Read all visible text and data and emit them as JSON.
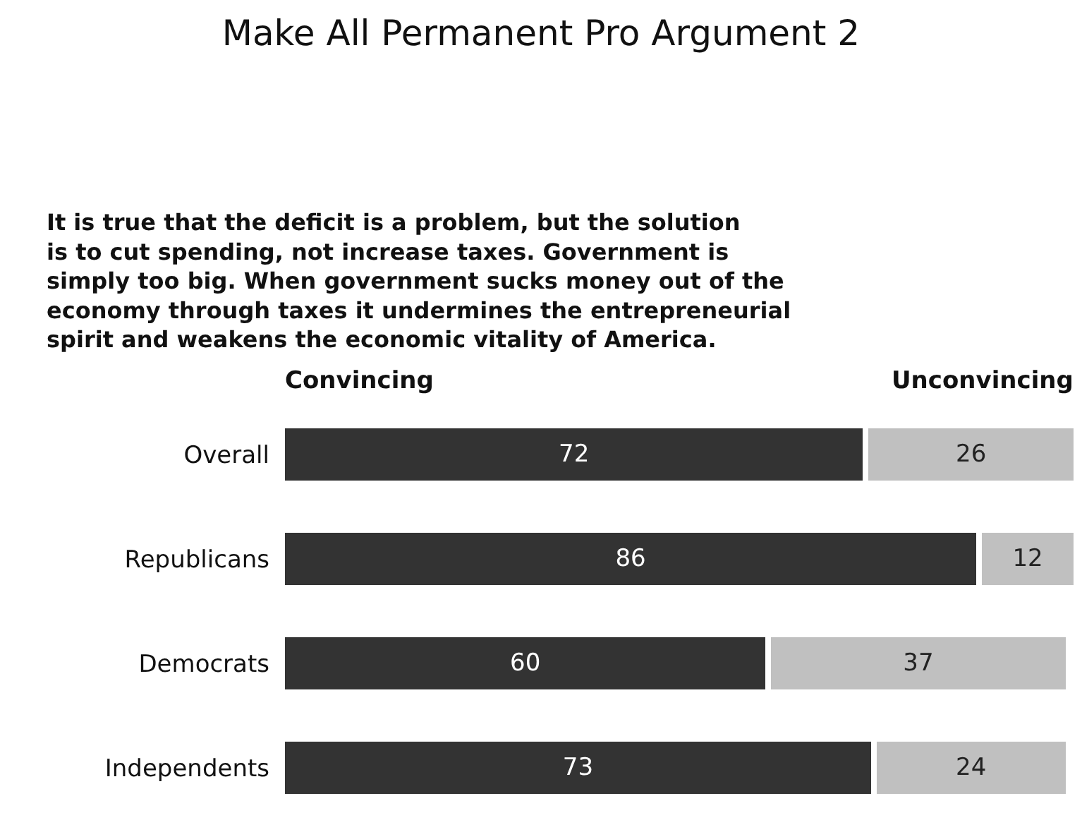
{
  "chart_data": {
    "type": "bar",
    "orientation": "horizontal",
    "stacked": true,
    "data_labels": true,
    "legend": false,
    "title": "Make All Permanent Pro Argument 2",
    "subtitle": "It is true that the deficit is a problem, but the solution is to cut spending, not increase taxes. Government is simply too big. When government sucks money out of the economy through taxes it undermines the entrepreneurial spirit and weakens the economic vitality of America.",
    "categories": [
      "Overall",
      "Republicans",
      "Democrats",
      "Independents"
    ],
    "series": [
      {
        "name": "Convincing",
        "color": "#333333",
        "values": [
          72,
          86,
          60,
          73
        ]
      },
      {
        "name": "Unconvincing",
        "color": "#c0c0c0",
        "values": [
          26,
          12,
          37,
          24
        ]
      }
    ]
  }
}
